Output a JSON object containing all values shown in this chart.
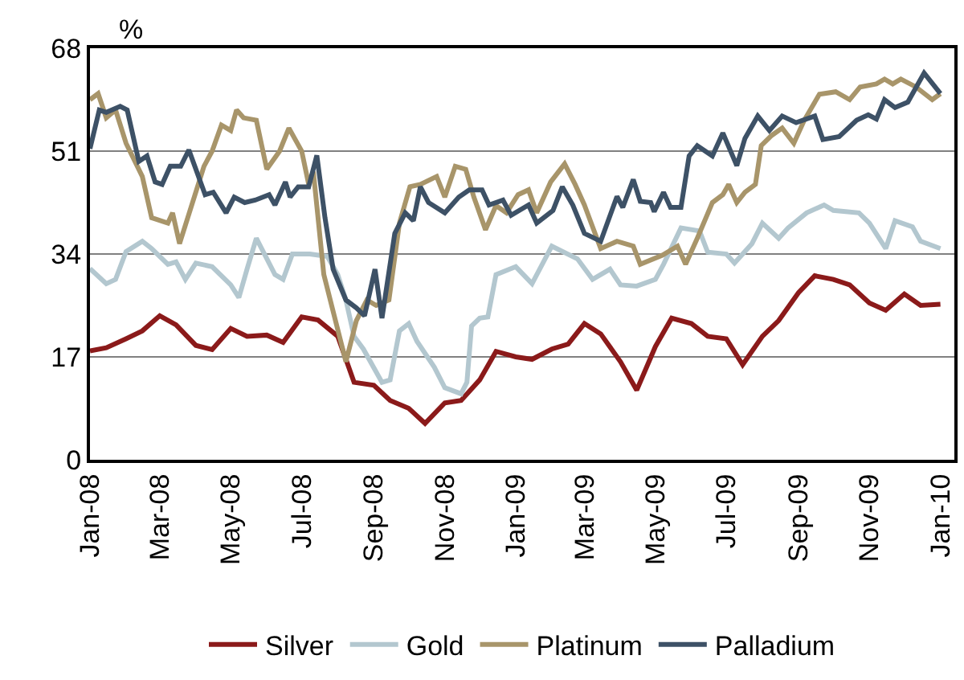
{
  "chart_data": {
    "type": "line",
    "ylabel": "%",
    "ylim": [
      0,
      68
    ],
    "yticks": [
      0,
      17,
      34,
      51,
      68
    ],
    "xlim": [
      "2008-01-01",
      "2010-01-13"
    ],
    "xticks": [
      {
        "value": "2008-01-01",
        "label": "Jan-08"
      },
      {
        "value": "2008-03-01",
        "label": "Mar-08"
      },
      {
        "value": "2008-05-01",
        "label": "May-08"
      },
      {
        "value": "2008-07-01",
        "label": "Jul-08"
      },
      {
        "value": "2008-09-01",
        "label": "Sep-08"
      },
      {
        "value": "2008-11-01",
        "label": "Nov-08"
      },
      {
        "value": "2009-01-01",
        "label": "Jan-09"
      },
      {
        "value": "2009-03-01",
        "label": "Mar-09"
      },
      {
        "value": "2009-05-01",
        "label": "May-09"
      },
      {
        "value": "2009-07-01",
        "label": "Jul-09"
      },
      {
        "value": "2009-09-01",
        "label": "Sep-09"
      },
      {
        "value": "2009-11-01",
        "label": "Nov-09"
      },
      {
        "value": "2010-01-01",
        "label": "Jan-10"
      }
    ],
    "grid": "y",
    "legend": "bottom",
    "marker": "none",
    "line_style": "solid",
    "series": [
      {
        "name": "Silver",
        "color": "#8b1a1a",
        "x": [
          "2008-01-01",
          "2008-01-15",
          "2008-02-01",
          "2008-02-15",
          "2008-03-01",
          "2008-03-15",
          "2008-04-01",
          "2008-04-15",
          "2008-05-01",
          "2008-05-15",
          "2008-06-01",
          "2008-06-15",
          "2008-07-01",
          "2008-07-15",
          "2008-08-01",
          "2008-08-15",
          "2008-09-01",
          "2008-09-15",
          "2008-10-01",
          "2008-10-15",
          "2008-11-01",
          "2008-11-15",
          "2008-12-01",
          "2008-12-15",
          "2009-01-01",
          "2009-01-15",
          "2009-02-01",
          "2009-02-15",
          "2009-03-01",
          "2009-03-15",
          "2009-04-01",
          "2009-04-15",
          "2009-05-01",
          "2009-05-15",
          "2009-06-01",
          "2009-06-15",
          "2009-07-01",
          "2009-07-15",
          "2009-08-01",
          "2009-08-15",
          "2009-09-01",
          "2009-09-15",
          "2009-10-01",
          "2009-10-15",
          "2009-11-01",
          "2009-11-15",
          "2009-12-01",
          "2009-12-15",
          "2010-01-01"
        ],
        "values": [
          18.0,
          18.5,
          20,
          21.3,
          23.8,
          22.3,
          18.9,
          18.2,
          21.7,
          20.4,
          20.6,
          19.4,
          23.6,
          23.1,
          20.4,
          12.8,
          12.3,
          9.8,
          8.5,
          6.0,
          9.4,
          9.8,
          13.2,
          17.9,
          17.0,
          16.6,
          18.3,
          19.1,
          22.5,
          20.8,
          16.2,
          11.5,
          18.7,
          23.4,
          22.5,
          20.4,
          20.0,
          15.7,
          20.4,
          23.0,
          27.6,
          30.4,
          29.8,
          28.9,
          25.9,
          24.7,
          27.4,
          25.5,
          25.7
        ]
      },
      {
        "name": "Gold",
        "color": "#b3c7cf",
        "x": [
          "2008-01-01",
          "2008-01-15",
          "2008-01-23",
          "2008-02-01",
          "2008-02-15",
          "2008-02-23",
          "2008-03-08",
          "2008-03-15",
          "2008-03-23",
          "2008-04-01",
          "2008-04-15",
          "2008-05-01",
          "2008-05-08",
          "2008-05-15",
          "2008-05-23",
          "2008-06-08",
          "2008-06-15",
          "2008-06-23",
          "2008-07-08",
          "2008-07-23",
          "2008-08-01",
          "2008-08-08",
          "2008-08-15",
          "2008-08-23",
          "2008-09-08",
          "2008-09-15",
          "2008-09-23",
          "2008-10-01",
          "2008-10-08",
          "2008-10-23",
          "2008-11-01",
          "2008-11-15",
          "2008-11-20",
          "2008-11-24",
          "2008-12-01",
          "2008-12-08",
          "2008-12-15",
          "2009-01-01",
          "2009-01-15",
          "2009-02-01",
          "2009-02-23",
          "2009-03-08",
          "2009-03-23",
          "2009-04-01",
          "2009-04-15",
          "2009-05-01",
          "2009-05-08",
          "2009-05-23",
          "2009-06-08",
          "2009-06-15",
          "2009-07-01",
          "2009-07-08",
          "2009-07-23",
          "2009-08-01",
          "2009-08-15",
          "2009-08-23",
          "2009-09-08",
          "2009-09-23",
          "2009-10-01",
          "2009-10-23",
          "2009-11-01",
          "2009-11-15",
          "2009-11-23",
          "2009-12-08",
          "2009-12-15",
          "2010-01-01"
        ],
        "values": [
          31.6,
          29.1,
          29.8,
          34.4,
          36.1,
          34.9,
          32.3,
          32.7,
          29.8,
          32.5,
          31.9,
          28.9,
          26.8,
          31.5,
          36.6,
          30.6,
          29.8,
          34,
          34,
          33.6,
          30.6,
          26.4,
          20.4,
          18.3,
          12.8,
          13.2,
          21.3,
          22.5,
          19.6,
          15.3,
          11.9,
          10.9,
          12.8,
          22.1,
          23.4,
          23.6,
          30.6,
          31.9,
          29.1,
          35.3,
          33.2,
          29.8,
          31.5,
          28.9,
          28.7,
          29.8,
          32.3,
          38.3,
          37.8,
          34.3,
          34,
          32.5,
          35.7,
          39.1,
          36.6,
          38.3,
          40.8,
          42.1,
          41.2,
          40.8,
          39.1,
          34.9,
          39.5,
          38.5,
          36.1,
          34.9
        ]
      },
      {
        "name": "Platinum",
        "color": "#a8956a",
        "x": [
          "2008-01-01",
          "2008-01-08",
          "2008-01-15",
          "2008-01-23",
          "2008-02-01",
          "2008-02-15",
          "2008-02-23",
          "2008-03-08",
          "2008-03-12",
          "2008-03-18",
          "2008-04-08",
          "2008-04-15",
          "2008-04-23",
          "2008-05-01",
          "2008-05-06",
          "2008-05-12",
          "2008-05-23",
          "2008-06-01",
          "2008-06-12",
          "2008-06-20",
          "2008-07-01",
          "2008-07-07",
          "2008-07-11",
          "2008-07-20",
          "2008-07-30",
          "2008-08-08",
          "2008-08-17",
          "2008-08-26",
          "2008-09-03",
          "2008-09-14",
          "2008-09-23",
          "2008-10-02",
          "2008-10-11",
          "2008-10-25",
          "2008-11-01",
          "2008-11-10",
          "2008-11-19",
          "2008-11-26",
          "2008-12-06",
          "2008-12-15",
          "2008-12-24",
          "2009-01-03",
          "2009-01-12",
          "2009-01-19",
          "2009-01-31",
          "2009-02-12",
          "2009-02-21",
          "2009-03-01",
          "2009-03-15",
          "2009-03-29",
          "2009-04-12",
          "2009-04-18",
          "2009-05-07",
          "2009-05-20",
          "2009-05-27",
          "2009-06-06",
          "2009-06-19",
          "2009-06-28",
          "2009-07-03",
          "2009-07-10",
          "2009-07-17",
          "2009-07-26",
          "2009-07-31",
          "2009-08-09",
          "2009-08-18",
          "2009-08-28",
          "2009-09-06",
          "2009-09-19",
          "2009-10-03",
          "2009-10-15",
          "2009-10-24",
          "2009-11-07",
          "2009-11-14",
          "2009-11-21",
          "2009-11-28",
          "2009-12-11",
          "2009-12-25",
          "2010-01-01"
        ],
        "values": [
          59.5,
          60.5,
          56.5,
          57.8,
          52.3,
          46.8,
          40,
          39.1,
          40.8,
          35.7,
          48.5,
          51,
          55.3,
          54.4,
          57.8,
          56.5,
          56.1,
          48,
          51,
          54.8,
          51,
          45.5,
          47.6,
          30.6,
          23,
          16.2,
          23,
          26.4,
          25.5,
          26.4,
          39.1,
          45.1,
          45.5,
          46.8,
          43.4,
          48.5,
          48,
          43.4,
          38,
          42,
          40.8,
          43.8,
          44.6,
          40.8,
          45.9,
          48.9,
          45.5,
          42.1,
          34.9,
          36.1,
          35.3,
          32.3,
          33.8,
          35.3,
          32.3,
          36.6,
          42.5,
          43.8,
          45.5,
          42.5,
          44.2,
          45.5,
          51.9,
          53.6,
          54.8,
          52.3,
          56.1,
          60.4,
          60.8,
          59.5,
          61.6,
          62.1,
          62.9,
          62.1,
          62.9,
          61.6,
          59.5,
          60.5
        ]
      },
      {
        "name": "Palladium",
        "color": "#3d5166",
        "x": [
          "2008-01-01",
          "2008-01-09",
          "2008-01-15",
          "2008-01-27",
          "2008-02-02",
          "2008-02-12",
          "2008-02-19",
          "2008-02-26",
          "2008-03-03",
          "2008-03-10",
          "2008-03-19",
          "2008-03-26",
          "2008-04-09",
          "2008-04-16",
          "2008-04-27",
          "2008-05-04",
          "2008-05-13",
          "2008-05-22",
          "2008-06-03",
          "2008-06-08",
          "2008-06-17",
          "2008-06-21",
          "2008-06-28",
          "2008-07-07",
          "2008-07-14",
          "2008-07-21",
          "2008-07-28",
          "2008-08-08",
          "2008-08-17",
          "2008-08-24",
          "2008-09-02",
          "2008-09-08",
          "2008-09-19",
          "2008-09-28",
          "2008-10-05",
          "2008-10-11",
          "2008-10-18",
          "2008-11-01",
          "2008-11-13",
          "2008-11-22",
          "2008-12-03",
          "2008-12-09",
          "2008-12-21",
          "2008-12-28",
          "2009-01-12",
          "2009-01-19",
          "2009-02-02",
          "2009-02-10",
          "2009-02-19",
          "2009-03-01",
          "2009-03-15",
          "2009-03-29",
          "2009-04-03",
          "2009-04-12",
          "2009-04-18",
          "2009-04-27",
          "2009-04-30",
          "2009-05-08",
          "2009-05-14",
          "2009-05-23",
          "2009-05-30",
          "2009-06-06",
          "2009-06-19",
          "2009-06-28",
          "2009-07-10",
          "2009-07-17",
          "2009-07-28",
          "2009-08-07",
          "2009-08-18",
          "2009-08-30",
          "2009-09-15",
          "2009-09-22",
          "2009-10-06",
          "2009-10-21",
          "2009-10-31",
          "2009-11-07",
          "2009-11-14",
          "2009-11-23",
          "2009-12-04",
          "2009-12-18",
          "2010-01-01"
        ],
        "values": [
          51.4,
          57.8,
          57.4,
          58.4,
          57.8,
          49.3,
          50.2,
          45.9,
          45.5,
          48.5,
          48.5,
          51.2,
          43.8,
          44.2,
          40.8,
          43.4,
          42.5,
          42.9,
          43.8,
          42.1,
          45.9,
          43.4,
          45.1,
          45.1,
          50.3,
          40,
          31.5,
          26.4,
          25.1,
          23.8,
          31.5,
          23.4,
          37.4,
          40.8,
          39.5,
          45.1,
          42.5,
          40.8,
          43.4,
          44.6,
          44.6,
          42.1,
          42.9,
          40.4,
          42.1,
          39.1,
          41.2,
          45.1,
          42.1,
          37.4,
          36.1,
          43.5,
          41.7,
          46.3,
          42.7,
          42.5,
          41,
          44.2,
          41.7,
          41.7,
          50.2,
          51.9,
          50.2,
          54,
          48.6,
          53.1,
          56.8,
          54.4,
          56.8,
          55.7,
          56.8,
          52.9,
          53.4,
          56.1,
          57,
          56.3,
          59.5,
          58.2,
          59.1,
          63.9,
          60.5
        ]
      }
    ]
  }
}
